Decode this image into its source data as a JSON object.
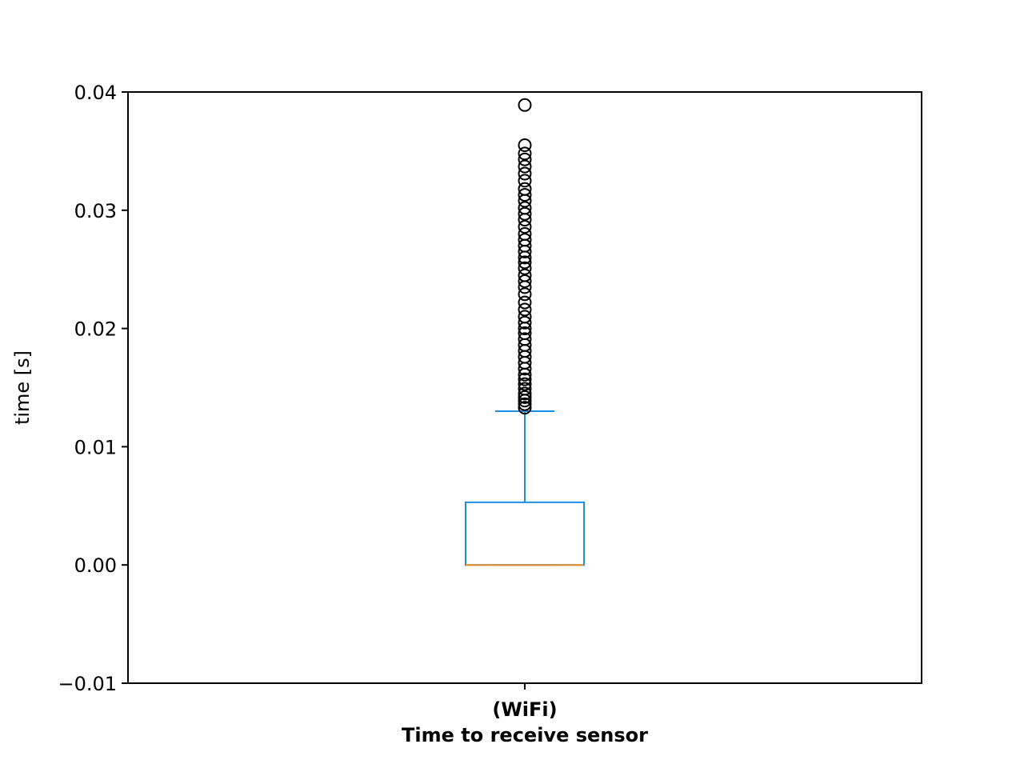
{
  "chart_data": {
    "type": "box",
    "title": "",
    "ylabel": "time [s]",
    "xlabel": "",
    "ylim": [
      -0.01,
      0.04
    ],
    "yticks": [
      -0.01,
      0.0,
      0.01,
      0.02,
      0.03,
      0.04
    ],
    "ytick_labels": [
      "−0.01",
      "0.00",
      "0.01",
      "0.02",
      "0.03",
      "0.04"
    ],
    "grid": false,
    "categories": [
      {
        "line1": "(WiFi)",
        "line2": "Time to receive sensor"
      }
    ],
    "boxes": [
      {
        "category_index": 0,
        "whisker_low": 0.0,
        "q1": 0.0,
        "median": 0.0,
        "q3": 0.0053,
        "whisker_high": 0.013,
        "outliers": [
          0.0133,
          0.0136,
          0.0139,
          0.0142,
          0.0145,
          0.0149,
          0.0153,
          0.0157,
          0.0161,
          0.0166,
          0.0171,
          0.0176,
          0.0181,
          0.0186,
          0.0191,
          0.0196,
          0.02,
          0.0205,
          0.021,
          0.0216,
          0.0222,
          0.0229,
          0.0235,
          0.024,
          0.0245,
          0.0251,
          0.0256,
          0.026,
          0.0265,
          0.027,
          0.0275,
          0.028,
          0.0286,
          0.0292,
          0.0297,
          0.0302,
          0.0308,
          0.0313,
          0.0318,
          0.0325,
          0.0331,
          0.0337,
          0.0343,
          0.0348,
          0.0355,
          0.0389
        ]
      }
    ],
    "colors": {
      "box": "#1f8fe5",
      "median": "#f08a24",
      "outlier": "#000000",
      "axes": "#000000"
    }
  }
}
